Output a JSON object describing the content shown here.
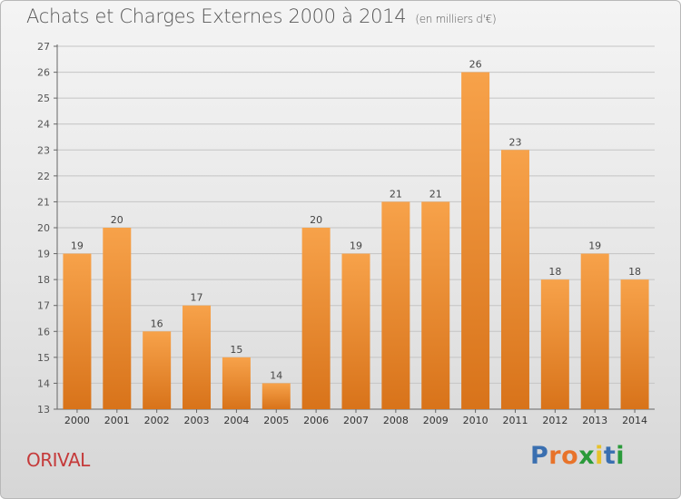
{
  "header": {
    "title": "Achats et Charges Externes 2000 à 2014",
    "unit_note": "(en milliers d'€)"
  },
  "footer": {
    "commune": "ORIVAL",
    "brand": "Proxiti",
    "brand_colors": [
      "#3a6fb0",
      "#e8732a",
      "#e8732a",
      "#2a9a3a",
      "#e8c22a",
      "#3a6fb0",
      "#2a9a3a"
    ]
  },
  "colors": {
    "bar_top": "#f7a24a",
    "bar_bottom": "#d8731a",
    "grid": "#c4c4c4",
    "axis": "#666666",
    "title_text": "#555555",
    "commune_text": "#c53a3a"
  },
  "chart_data": {
    "type": "bar",
    "categories": [
      "2000",
      "2001",
      "2002",
      "2003",
      "2004",
      "2005",
      "2006",
      "2007",
      "2008",
      "2009",
      "2010",
      "2011",
      "2012",
      "2013",
      "2014"
    ],
    "values": [
      19,
      20,
      16,
      17,
      15,
      14,
      20,
      19,
      21,
      21,
      26,
      23,
      18,
      19,
      18
    ],
    "title": "Achats et Charges Externes 2000 à 2014",
    "subtitle": "(en milliers d'€)",
    "xlabel": "",
    "ylabel": "",
    "ylim": [
      13,
      27
    ],
    "yticks": [
      "13",
      "14",
      "15",
      "16",
      "17",
      "18",
      "19",
      "20",
      "21",
      "22",
      "23",
      "24",
      "25",
      "26",
      "27"
    ],
    "grid": true,
    "data_labels": true
  }
}
